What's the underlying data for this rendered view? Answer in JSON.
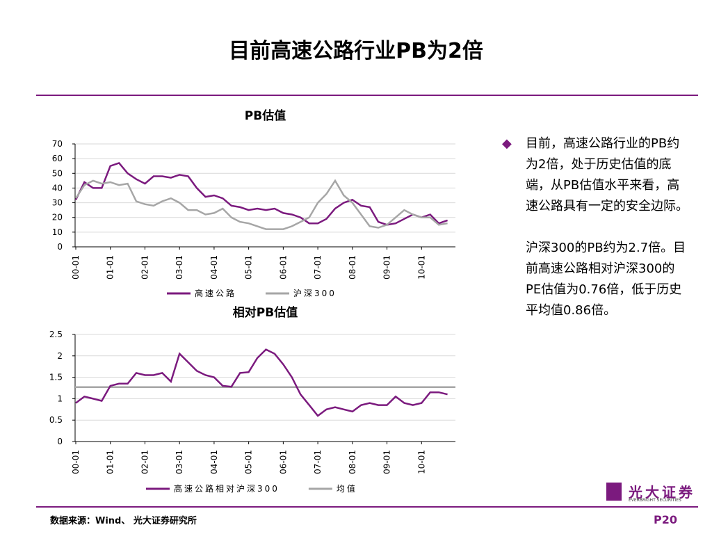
{
  "title": "目前高速公路行业PB为2倍",
  "chart_data": [
    {
      "type": "line",
      "title": "PB估值",
      "categories": [
        "00-01",
        null,
        null,
        null,
        "01-01",
        null,
        null,
        null,
        "02-01",
        null,
        null,
        null,
        "03-01",
        null,
        null,
        null,
        "04-01",
        null,
        null,
        null,
        "05-01",
        null,
        null,
        null,
        "06-01",
        null,
        null,
        null,
        "07-01",
        null,
        null,
        null,
        "08-01",
        null,
        null,
        null,
        "09-01",
        null,
        null,
        null,
        "10-01",
        null,
        null,
        null
      ],
      "series": [
        {
          "name": "高速公路",
          "color": "#7b1a7e",
          "values": [
            32,
            44,
            40,
            40,
            55,
            57,
            50,
            46,
            43,
            48,
            48,
            47,
            49,
            48,
            40,
            34,
            35,
            33,
            28,
            27,
            25,
            26,
            25,
            26,
            23,
            22,
            20,
            16,
            16,
            19,
            26,
            30,
            32,
            28,
            27,
            17,
            15,
            16,
            19,
            22,
            20,
            22,
            16,
            18
          ]
        },
        {
          "name": "沪深300",
          "color": "#a6a6a6",
          "values": [
            33,
            42,
            45,
            43,
            44,
            42,
            43,
            31,
            29,
            28,
            31,
            33,
            30,
            25,
            25,
            22,
            23,
            26,
            20,
            17,
            16,
            14,
            12,
            12,
            12,
            14,
            17,
            20,
            30,
            36,
            45,
            35,
            30,
            22,
            14,
            13,
            15,
            20,
            25,
            22,
            20,
            20,
            15,
            16
          ]
        }
      ],
      "ylim": [
        0,
        70
      ],
      "yticks": [
        0,
        10,
        20,
        30,
        40,
        50,
        60,
        70
      ],
      "grid": true
    },
    {
      "type": "line",
      "title": "相对PB估值",
      "categories": [
        "00-01",
        null,
        null,
        null,
        "01-01",
        null,
        null,
        null,
        "02-01",
        null,
        null,
        null,
        "03-01",
        null,
        null,
        null,
        "04-01",
        null,
        null,
        null,
        "05-01",
        null,
        null,
        null,
        "06-01",
        null,
        null,
        null,
        "07-01",
        null,
        null,
        null,
        "08-01",
        null,
        null,
        null,
        "09-01",
        null,
        null,
        null,
        "10-01",
        null,
        null,
        null
      ],
      "series": [
        {
          "name": "高速公路相对沪深300",
          "color": "#7b1a7e",
          "values": [
            0.9,
            1.05,
            1.0,
            0.95,
            1.3,
            1.35,
            1.35,
            1.6,
            1.55,
            1.55,
            1.6,
            1.4,
            2.05,
            1.85,
            1.65,
            1.55,
            1.5,
            1.3,
            1.28,
            1.6,
            1.62,
            1.95,
            2.15,
            2.05,
            1.8,
            1.5,
            1.1,
            0.85,
            0.6,
            0.75,
            0.8,
            0.75,
            0.7,
            0.85,
            0.9,
            0.85,
            0.85,
            1.05,
            0.9,
            0.85,
            0.9,
            1.15,
            1.15,
            1.1
          ]
        }
      ],
      "reference_line": {
        "name": "均值",
        "color": "#a6a6a6",
        "value": 1.27
      },
      "ylim": [
        0,
        2.5
      ],
      "yticks": [
        0,
        0.5,
        1,
        1.5,
        2,
        2.5
      ],
      "grid": true
    }
  ],
  "sidebar": {
    "bullet": "目前，高速公路行业的PB约为2倍，处于历史估值的底端，从PB估值水平来看，高速公路具有一定的安全边际。",
    "paragraph": "沪深300的PB约为2.7倍。目前高速公路相对沪深300的PE估值为0.76倍，低于历史平均值0.86倍。"
  },
  "footer": {
    "source": "数据来源：Wind、 光大证券研究所",
    "page": "P20"
  },
  "logo": {
    "name": "光大证券",
    "subtitle": "EVERBRIGHT SECURITIES"
  }
}
